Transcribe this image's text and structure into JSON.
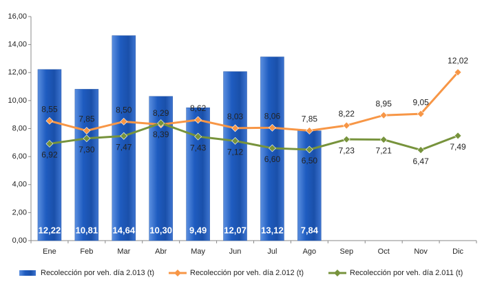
{
  "chart_data": {
    "type": "combo",
    "categories": [
      "Ene",
      "Feb",
      "Mar",
      "Abr",
      "May",
      "Jun",
      "Jul",
      "Ago",
      "Sep",
      "Oct",
      "Nov",
      "Dic"
    ],
    "series": [
      {
        "name": "Recolección por veh. día 2.013 (t)",
        "type": "bar",
        "color": "#1f5cc0",
        "values": [
          12.22,
          10.81,
          14.64,
          10.3,
          9.49,
          12.07,
          13.12,
          7.84,
          null,
          null,
          null,
          null
        ],
        "value_labels": [
          "12,22",
          "10,81",
          "14,64",
          "10,30",
          "9,49",
          "12,07",
          "13,12",
          "7,84",
          null,
          null,
          null,
          null
        ]
      },
      {
        "name": "Recolección por veh. día 2.012 (t)",
        "type": "line",
        "color": "#f79646",
        "values": [
          8.55,
          7.85,
          8.5,
          8.29,
          8.62,
          8.03,
          8.06,
          7.85,
          8.22,
          8.95,
          9.05,
          12.02
        ],
        "value_labels": [
          "8,55",
          "7,85",
          "8,50",
          "8,29",
          "8,62",
          "8,03",
          "8,06",
          "7,85",
          "8,22",
          "8,95",
          "9,05",
          "12,02"
        ]
      },
      {
        "name": "Recolección por veh. día 2.011 (t)",
        "type": "line",
        "color": "#77933c",
        "values": [
          6.92,
          7.3,
          7.47,
          8.39,
          7.43,
          7.12,
          6.6,
          6.5,
          7.23,
          7.21,
          6.47,
          7.49
        ],
        "value_labels": [
          "6,92",
          "7,30",
          "7,47",
          "8,39",
          "7,43",
          "7,12",
          "6,60",
          "6,50",
          "7,23",
          "7,21",
          "6,47",
          "7,49"
        ]
      }
    ],
    "ylim": [
      0,
      16
    ],
    "yticks": [
      {
        "value": 0,
        "label": "0,00"
      },
      {
        "value": 2,
        "label": "2,00"
      },
      {
        "value": 4,
        "label": "4,00"
      },
      {
        "value": 6,
        "label": "6,00"
      },
      {
        "value": 8,
        "label": "8,00"
      },
      {
        "value": 10,
        "label": "10,00"
      },
      {
        "value": 12,
        "label": "12,00"
      },
      {
        "value": 14,
        "label": "14,00"
      },
      {
        "value": 16,
        "label": "16,00"
      }
    ],
    "grid": false,
    "legend": "bottom"
  }
}
